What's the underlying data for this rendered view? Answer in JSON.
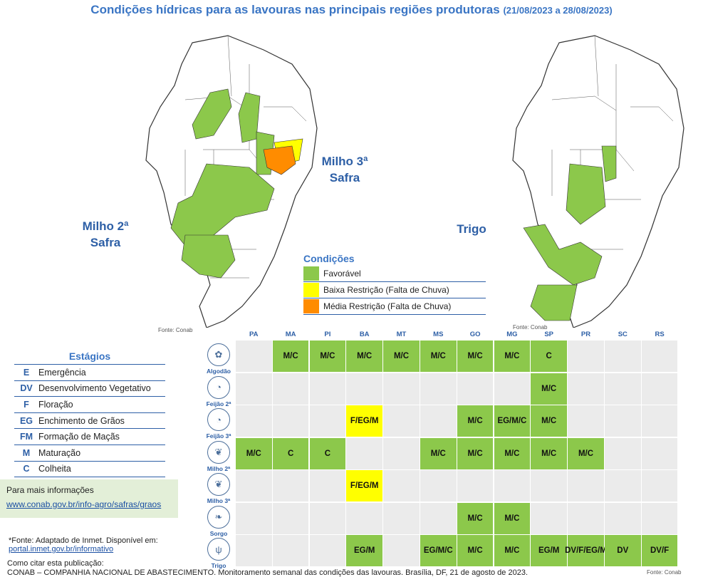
{
  "title": {
    "main": "Condições hídricas para as lavouras nas principais regiões produtoras",
    "dates": "(21/08/2023 a 28/08/2023)"
  },
  "maps": [
    {
      "label_line1": "Milho 2ª",
      "label_line2": "Safra",
      "label_line3": "Milho 3ª",
      "label_line4": "Safra",
      "fonte": "Fonte: Conab"
    },
    {
      "label": "Trigo",
      "fonte": "Fonte: Conab"
    }
  ],
  "colors": {
    "favoravel": "#8cc84b",
    "baixa": "#ffff00",
    "media": "#ff8c00",
    "empty": "#ebebeb",
    "accent": "#3a75c4"
  },
  "condicoes": {
    "header": "Condições",
    "items": [
      {
        "label": "Favorável",
        "color": "#8cc84b"
      },
      {
        "label": "Baixa Restrição (Falta de Chuva)",
        "color": "#ffff00"
      },
      {
        "label": "Média Restrição (Falta de Chuva)",
        "color": "#ff8c00"
      }
    ]
  },
  "estagios": {
    "header": "Estágios",
    "items": [
      {
        "code": "E",
        "label": "Emergência"
      },
      {
        "code": "DV",
        "label": "Desenvolvimento Vegetativo"
      },
      {
        "code": "F",
        "label": "Floração"
      },
      {
        "code": "EG",
        "label": "Enchimento de Grãos"
      },
      {
        "code": "FM",
        "label": "Formação de Maçãs"
      },
      {
        "code": "M",
        "label": "Maturação"
      },
      {
        "code": "C",
        "label": "Colheita"
      }
    ]
  },
  "info": {
    "text": "Para mais informações",
    "link": "www.conab.gov.br/info-agro/safras/graos"
  },
  "footnote": {
    "text": "*Fonte: Adaptado de Inmet. Disponível em:",
    "link": "portal.inmet.gov.br/informativo"
  },
  "citar": "Como citar esta publicação:",
  "citation": "CONAB – COMPANHIA NACIONAL DE ABASTECIMENTO. Monitoramento semanal das condições das lavouras. Brasília, DF, 21 de agosto de 2023.",
  "fonte_bottom": "Fonte: Conab",
  "table": {
    "states": [
      "PA",
      "MA",
      "PI",
      "BA",
      "MT",
      "MS",
      "GO",
      "MG",
      "SP",
      "PR",
      "SC",
      "RS"
    ],
    "crops": [
      {
        "name": "Algodão",
        "icon": "✿",
        "cells": [
          [
            "",
            ""
          ],
          [
            "M/C",
            "g"
          ],
          [
            "M/C",
            "g"
          ],
          [
            "M/C",
            "g"
          ],
          [
            "M/C",
            "g"
          ],
          [
            "M/C",
            "g"
          ],
          [
            "M/C",
            "g"
          ],
          [
            "M/C",
            "g"
          ],
          [
            "C",
            "g"
          ],
          [
            "",
            ""
          ],
          [
            "",
            ""
          ],
          [
            "",
            ""
          ]
        ]
      },
      {
        "name": "Feijão 2ª",
        "icon": "◔",
        "cells": [
          [
            "",
            ""
          ],
          [
            "",
            ""
          ],
          [
            "",
            ""
          ],
          [
            "",
            ""
          ],
          [
            "",
            ""
          ],
          [
            "",
            ""
          ],
          [
            "",
            ""
          ],
          [
            "",
            ""
          ],
          [
            "M/C",
            "g"
          ],
          [
            "",
            ""
          ],
          [
            "",
            ""
          ],
          [
            "",
            ""
          ]
        ]
      },
      {
        "name": "Feijão 3ª",
        "icon": "◔",
        "cells": [
          [
            "",
            ""
          ],
          [
            "",
            ""
          ],
          [
            "",
            ""
          ],
          [
            "F/EG/M",
            "y"
          ],
          [
            "",
            ""
          ],
          [
            "",
            ""
          ],
          [
            "M/C",
            "g"
          ],
          [
            "EG/M/C",
            "g"
          ],
          [
            "M/C",
            "g"
          ],
          [
            "",
            ""
          ],
          [
            "",
            ""
          ],
          [
            "",
            ""
          ]
        ]
      },
      {
        "name": "Milho 2ª",
        "icon": "❦",
        "cells": [
          [
            "M/C",
            "g"
          ],
          [
            "C",
            "g"
          ],
          [
            "C",
            "g"
          ],
          [
            "",
            ""
          ],
          [
            "",
            ""
          ],
          [
            "M/C",
            "g"
          ],
          [
            "M/C",
            "g"
          ],
          [
            "M/C",
            "g"
          ],
          [
            "M/C",
            "g"
          ],
          [
            "M/C",
            "g"
          ],
          [
            "",
            ""
          ],
          [
            "",
            ""
          ]
        ]
      },
      {
        "name": "Milho 3ª",
        "icon": "❦",
        "cells": [
          [
            "",
            ""
          ],
          [
            "",
            ""
          ],
          [
            "",
            ""
          ],
          [
            "F/EG/M",
            "y"
          ],
          [
            "",
            ""
          ],
          [
            "",
            ""
          ],
          [
            "",
            ""
          ],
          [
            "",
            ""
          ],
          [
            "",
            ""
          ],
          [
            "",
            ""
          ],
          [
            "",
            ""
          ],
          [
            "",
            ""
          ]
        ]
      },
      {
        "name": "Sorgo",
        "icon": "❧",
        "cells": [
          [
            "",
            ""
          ],
          [
            "",
            ""
          ],
          [
            "",
            ""
          ],
          [
            "",
            ""
          ],
          [
            "",
            ""
          ],
          [
            "",
            ""
          ],
          [
            "M/C",
            "g"
          ],
          [
            "M/C",
            "g"
          ],
          [
            "",
            ""
          ],
          [
            "",
            ""
          ],
          [
            "",
            ""
          ],
          [
            "",
            ""
          ]
        ]
      },
      {
        "name": "Trigo",
        "icon": "ψ",
        "cells": [
          [
            "",
            ""
          ],
          [
            "",
            ""
          ],
          [
            "",
            ""
          ],
          [
            "EG/M",
            "g"
          ],
          [
            "",
            ""
          ],
          [
            "EG/M/C",
            "g"
          ],
          [
            "M/C",
            "g"
          ],
          [
            "M/C",
            "g"
          ],
          [
            "EG/M",
            "g"
          ],
          [
            "DV/F/EG/M",
            "g"
          ],
          [
            "DV",
            "g"
          ],
          [
            "DV/F",
            "g"
          ]
        ]
      }
    ]
  }
}
